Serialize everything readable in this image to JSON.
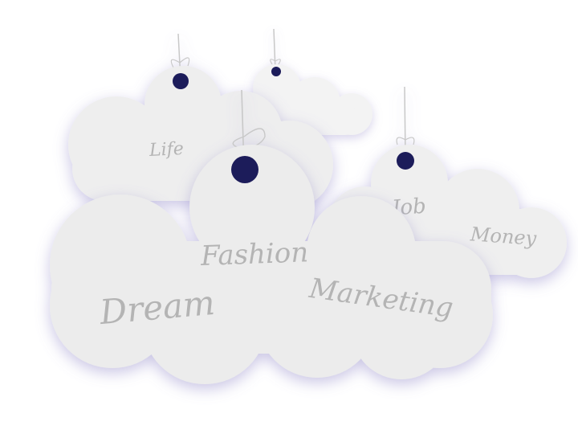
{
  "words": {
    "life": "Life",
    "job": "Job",
    "money": "Money",
    "fashion": "Fashion",
    "dream": "Dream",
    "marketing": "Marketing"
  },
  "colors": {
    "background": "#ffffff",
    "cloud": "#ededed",
    "cloud_back": "#f4f4f4",
    "shadow": "#bdb8dc",
    "hole": "#1c1a5a",
    "string": "#c8c8c8",
    "text": "#b4b4b4"
  },
  "icons": [
    "cloud-tag",
    "hanging-string",
    "hole-eyelet"
  ]
}
